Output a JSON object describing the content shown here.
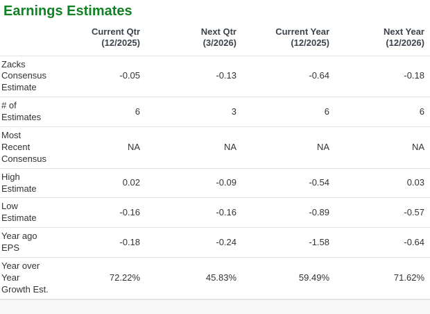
{
  "colors": {
    "title_green": "#108223",
    "header_text": "#3c434b",
    "body_text": "#333333",
    "separator": "#e2e2e2",
    "page_background": "#f8f8f8"
  },
  "chart_data": {
    "type": "table",
    "title": "Earnings Estimates",
    "columns": [
      {
        "label": "Current Qtr",
        "period": "(12/2025)"
      },
      {
        "label": "Next Qtr",
        "period": "(3/2026)"
      },
      {
        "label": "Current Year",
        "period": "(12/2025)"
      },
      {
        "label": "Next Year",
        "period": "(12/2026)"
      }
    ],
    "rows": [
      {
        "label": "Zacks Consensus Estimate",
        "values": [
          "-0.05",
          "-0.13",
          "-0.64",
          "-0.18"
        ]
      },
      {
        "label": "# of Estimates",
        "values": [
          "6",
          "3",
          "6",
          "6"
        ]
      },
      {
        "label": "Most Recent Consensus",
        "values": [
          "NA",
          "NA",
          "NA",
          "NA"
        ]
      },
      {
        "label": "High Estimate",
        "values": [
          "0.02",
          "-0.09",
          "-0.54",
          "0.03"
        ]
      },
      {
        "label": "Low Estimate",
        "values": [
          "-0.16",
          "-0.16",
          "-0.89",
          "-0.57"
        ]
      },
      {
        "label": "Year ago EPS",
        "values": [
          "-0.18",
          "-0.24",
          "-1.58",
          "-0.64"
        ]
      },
      {
        "label": "Year over Year Growth Est.",
        "values": [
          "72.22%",
          "45.83%",
          "59.49%",
          "71.62%"
        ]
      }
    ]
  }
}
